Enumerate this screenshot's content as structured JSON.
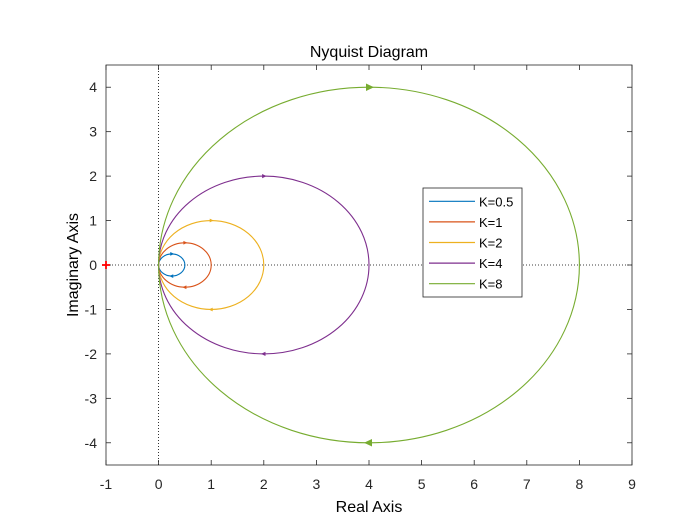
{
  "chart_data": {
    "type": "line",
    "title": "Nyquist Diagram",
    "xlabel": "Real Axis",
    "ylabel": "Imaginary Axis",
    "xlim": [
      -1,
      9
    ],
    "ylim": [
      -4.5,
      4.5
    ],
    "xticks": [
      "-1",
      "0",
      "1",
      "2",
      "3",
      "4",
      "5",
      "6",
      "7",
      "8",
      "9"
    ],
    "yticks": [
      "4",
      "3",
      "2",
      "1",
      "0",
      "-1",
      "-2",
      "-3",
      "-4"
    ],
    "grid": false,
    "zero_lines": "dotted",
    "critical_point": {
      "x": -1,
      "y": 0,
      "color": "#ff0000"
    },
    "legend_position": "center-right",
    "series": [
      {
        "name": "K=0.5",
        "color": "#0072bd",
        "center": [
          0.25,
          0
        ],
        "radius": 0.25
      },
      {
        "name": "K=1",
        "color": "#d95319",
        "center": [
          0.5,
          0
        ],
        "radius": 0.5
      },
      {
        "name": "K=2",
        "color": "#edb120",
        "center": [
          1,
          0
        ],
        "radius": 1
      },
      {
        "name": "K=4",
        "color": "#7e2f8e",
        "center": [
          2,
          0
        ],
        "radius": 2
      },
      {
        "name": "K=8",
        "color": "#77ac30",
        "center": [
          4,
          0
        ],
        "radius": 4
      }
    ]
  }
}
